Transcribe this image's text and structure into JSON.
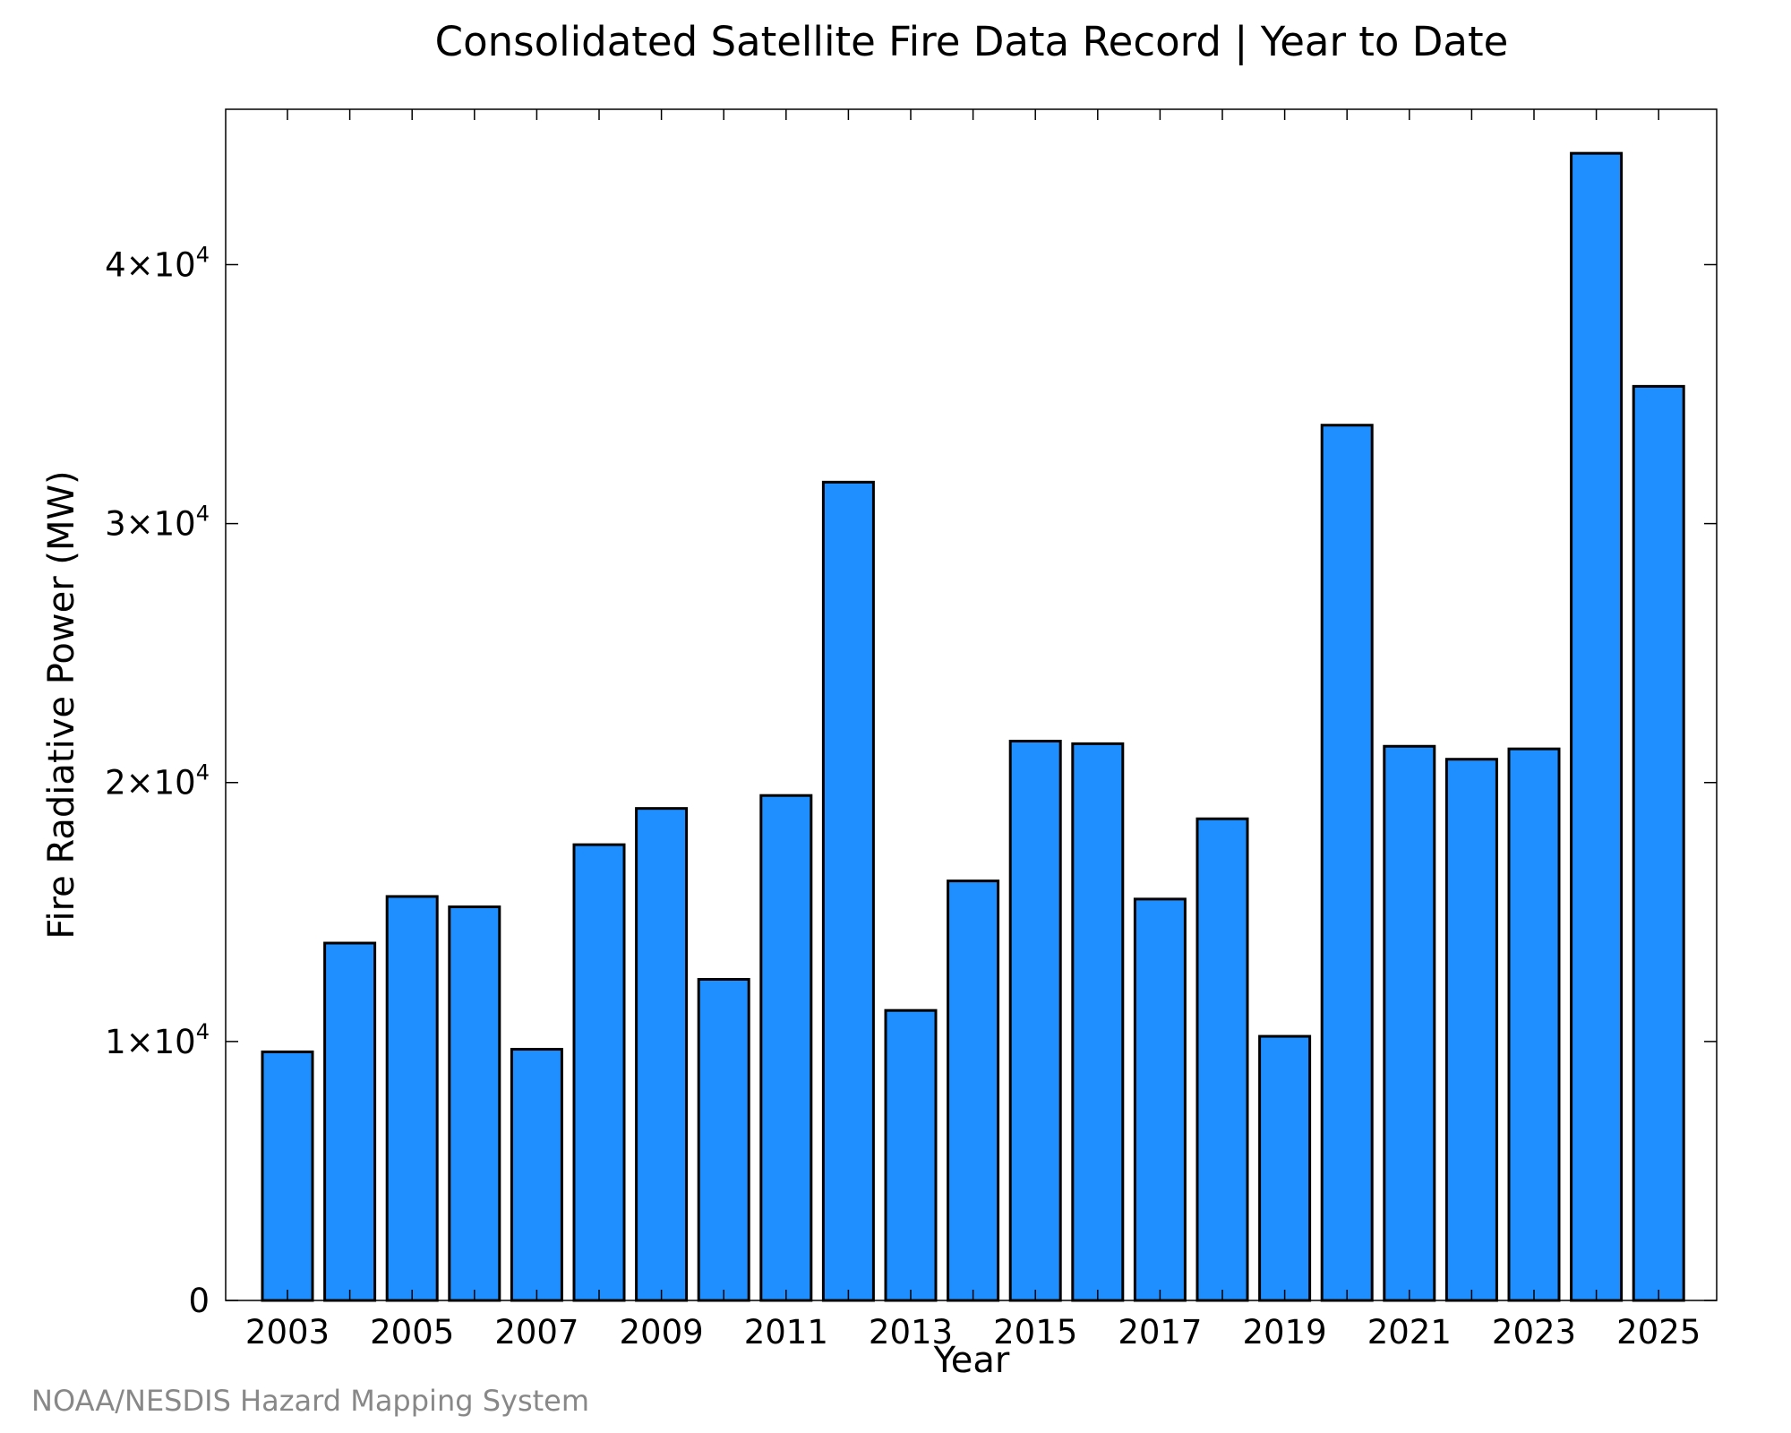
{
  "chart_data": {
    "type": "bar",
    "title": "Consolidated Satellite Fire Data Record | Year to Date",
    "xlabel": "Year",
    "ylabel": "Fire Radiative Power (MW)",
    "categories": [
      "2003",
      "2004",
      "2005",
      "2006",
      "2007",
      "2008",
      "2009",
      "2010",
      "2011",
      "2012",
      "2013",
      "2014",
      "2015",
      "2016",
      "2017",
      "2018",
      "2019",
      "2020",
      "2021",
      "2022",
      "2023",
      "2024",
      "2025"
    ],
    "values": [
      9600,
      13800,
      15600,
      15200,
      9700,
      17600,
      19000,
      12400,
      19500,
      31600,
      11200,
      16200,
      21600,
      21500,
      15500,
      18600,
      10200,
      33800,
      21400,
      20900,
      21300,
      44300,
      35300
    ],
    "ylim": [
      0,
      46000
    ],
    "yticks": [
      {
        "value": 0,
        "mantissa": "0",
        "exp": ""
      },
      {
        "value": 10000,
        "mantissa": "1×10",
        "exp": "4"
      },
      {
        "value": 20000,
        "mantissa": "2×10",
        "exp": "4"
      },
      {
        "value": 30000,
        "mantissa": "3×10",
        "exp": "4"
      },
      {
        "value": 40000,
        "mantissa": "4×10",
        "exp": "4"
      }
    ],
    "xtick_labels": [
      "2003",
      "2005",
      "2007",
      "2009",
      "2011",
      "2013",
      "2015",
      "2017",
      "2019",
      "2021",
      "2023",
      "2025"
    ],
    "bar_color": "#1f8fff",
    "edge_color": "#000000",
    "grid": false,
    "legend": "none"
  },
  "source": "NOAA/NESDIS Hazard Mapping System"
}
